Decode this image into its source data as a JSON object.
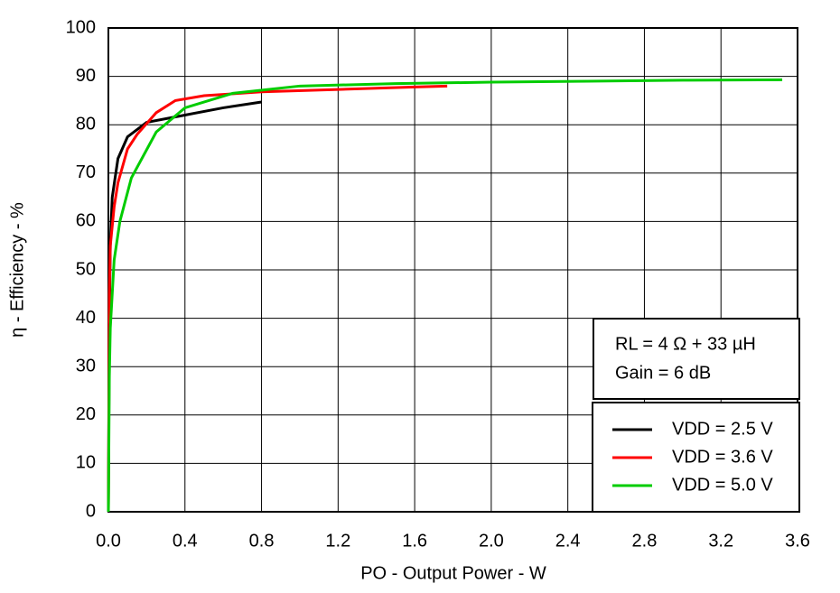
{
  "chart_data": {
    "type": "line",
    "x_label": "PO - Output Power - W",
    "y_label": "η - Efficiency - %",
    "annotations": [
      "RL = 4 Ω + 33 µH",
      "Gain = 6 dB"
    ],
    "xlim": [
      0,
      3.6
    ],
    "ylim": [
      0,
      100
    ],
    "xticks": [
      {
        "value": 0,
        "label": "0.0"
      },
      0.4,
      0.8,
      1.2,
      1.6,
      {
        "value": 2,
        "label": "2.0"
      },
      2.4,
      2.8,
      3.2,
      3.6
    ],
    "yticks": [
      0,
      10,
      20,
      30,
      40,
      50,
      60,
      70,
      80,
      90,
      100
    ],
    "grid": true,
    "legend": "lower right",
    "series": [
      {
        "name": "VDD = 2.5 V",
        "color": "#000000",
        "x": [
          0,
          0.005,
          0.01,
          0.02,
          0.05,
          0.1,
          0.2,
          0.4,
          0.6,
          0.8
        ],
        "values": [
          0,
          40,
          55,
          65,
          73,
          77.5,
          80.5,
          82,
          83.5,
          84.7
        ]
      },
      {
        "name": "VDD = 3.6 V",
        "color": "#ff0000",
        "x": [
          0,
          0.005,
          0.01,
          0.03,
          0.05,
          0.1,
          0.15,
          0.25,
          0.35,
          0.5,
          0.8,
          1.2,
          1.6,
          1.77
        ],
        "values": [
          0,
          45,
          55,
          63,
          68,
          75,
          78,
          82.5,
          85,
          86,
          86.8,
          87.3,
          87.8,
          88
        ]
      },
      {
        "name": "VDD = 5.0 V",
        "color": "#00cc00",
        "x": [
          0,
          0.005,
          0.01,
          0.03,
          0.06,
          0.12,
          0.25,
          0.4,
          0.65,
          1.0,
          1.5,
          2.0,
          2.5,
          3.0,
          3.52
        ],
        "values": [
          0,
          28,
          38,
          52,
          60,
          69,
          78.5,
          83.5,
          86.5,
          88,
          88.5,
          88.8,
          89,
          89.2,
          89.3
        ]
      }
    ]
  }
}
